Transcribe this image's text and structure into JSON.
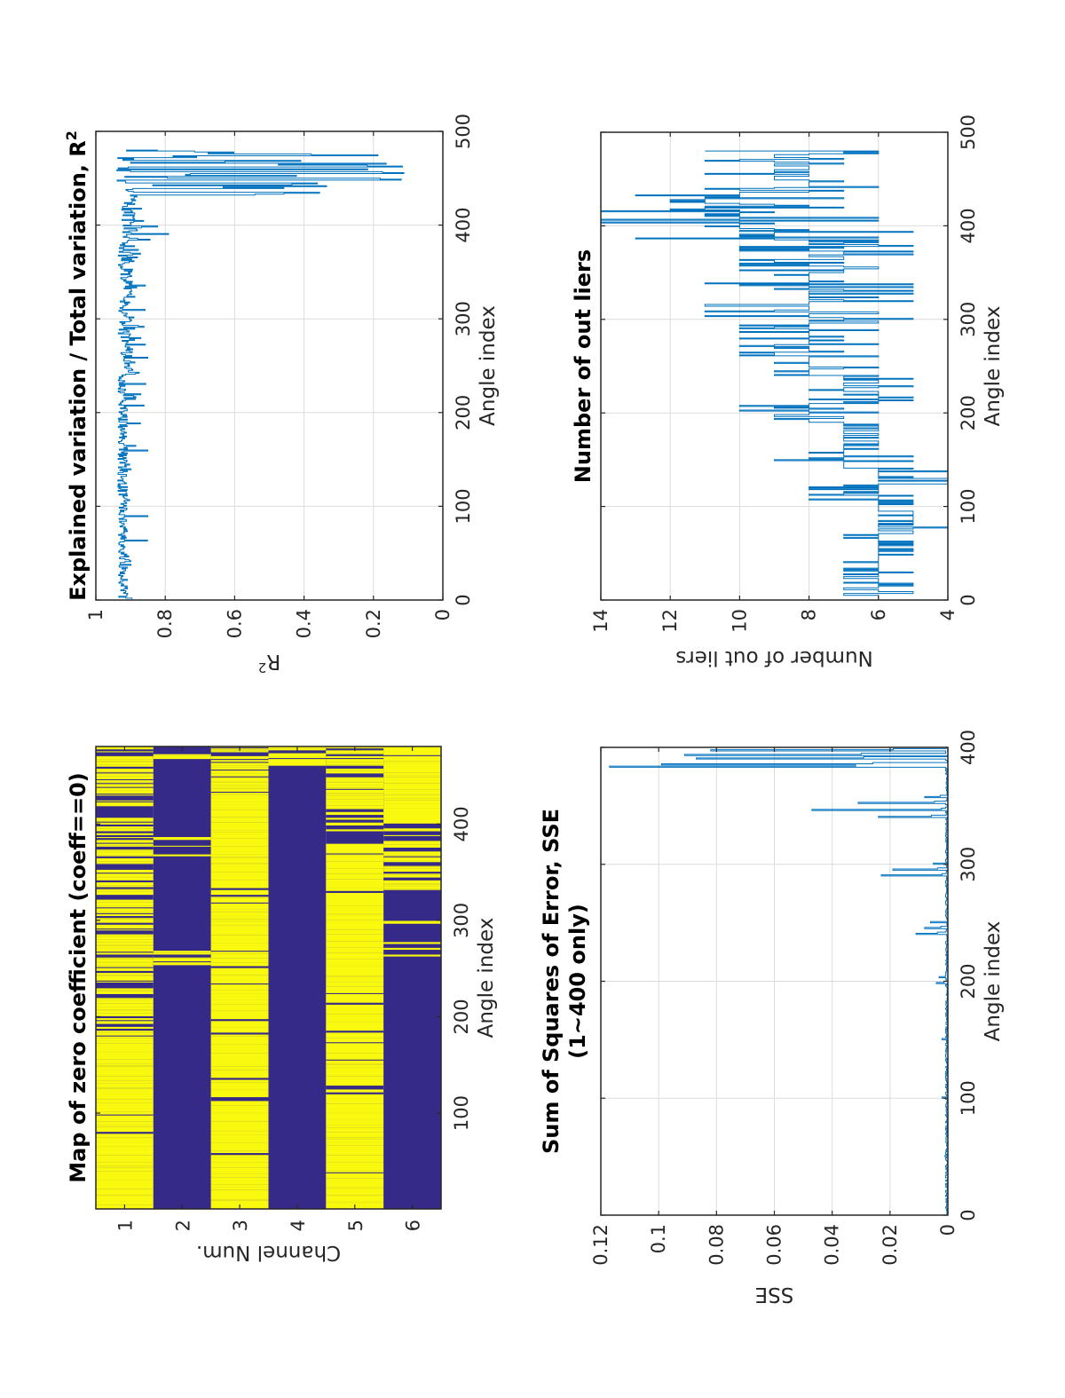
{
  "figure": {
    "orientation": "rotated -90 deg (landscape page shown in portrait)",
    "line_color": "#0072bd",
    "grid_color": "#dcdcdc",
    "axis_color": "#262626"
  },
  "chart_data": [
    {
      "id": "zero-map",
      "type": "heatmap",
      "title": "Map of zero coefficient (coeff==0)",
      "xlabel": "Angle index",
      "ylabel": "Channel Num.",
      "xlim": [
        0.5,
        480.5
      ],
      "xticks": [
        100,
        200,
        300,
        400
      ],
      "yticks": [
        1,
        2,
        3,
        4,
        5,
        6
      ],
      "colors": {
        "zero": "#f9f90f",
        "nonzero": "#352a87"
      },
      "grid": false,
      "rows": [
        {
          "channel": 1,
          "zero_fraction": 0.78,
          "note": "mostly zero throughout; dense alternation 170-470"
        },
        {
          "channel": 2,
          "zero_fraction": 0.04,
          "note": "mostly non-zero; sparse zero lines near 195, 255-265, 345-380, 465"
        },
        {
          "channel": 3,
          "zero_fraction": 0.86,
          "note": "mostly zero up to ~430; mixed 430-480"
        },
        {
          "channel": 4,
          "zero_fraction": 0.08,
          "note": "non-zero up to ~440; zero-dominated 440-480"
        },
        {
          "channel": 5,
          "zero_fraction": 0.8,
          "note": "mostly zero; non-zero gaps near 380-410"
        },
        {
          "channel": 6,
          "zero_fraction": 0.18,
          "note": "non-zero up to ~250; mixed 250-400; zero-dominated 400-480"
        }
      ]
    },
    {
      "id": "r-squared",
      "type": "line",
      "title": "Explained variation / Total variation, R²",
      "title_text": "Explained variation / Total variation, R",
      "title_sup": "2",
      "xlabel": "Angle index",
      "ylabel": "R",
      "ylabel_sup": "2",
      "xlim": [
        0,
        500
      ],
      "ylim": [
        0,
        1
      ],
      "xticks": [
        0,
        100,
        200,
        300,
        400,
        500
      ],
      "yticks": [
        0,
        0.2,
        0.4,
        0.6,
        0.8,
        1
      ],
      "ytick_labels": [
        "0",
        "0.2",
        "0.4",
        "0.6",
        "0.8",
        "1"
      ],
      "grid": true,
      "segments": [
        {
          "x_range": [
            1,
            60
          ],
          "baseline": 0.92,
          "min": 0.89,
          "max": 0.94
        },
        {
          "x_range": [
            60,
            240
          ],
          "baseline": 0.92,
          "min": 0.85,
          "max": 0.94
        },
        {
          "x_range": [
            240,
            260
          ],
          "baseline": 0.9,
          "min": 0.8,
          "max": 0.93
        },
        {
          "x_range": [
            260,
            380
          ],
          "baseline": 0.91,
          "min": 0.85,
          "max": 0.94
        },
        {
          "x_range": [
            380,
            400
          ],
          "baseline": 0.89,
          "min": 0.79,
          "max": 0.93
        },
        {
          "x_range": [
            400,
            430
          ],
          "baseline": 0.9,
          "min": 0.86,
          "max": 0.93
        },
        {
          "x_range": [
            430,
            480
          ],
          "baseline": 0.5,
          "min": 0.08,
          "max": 0.94
        }
      ]
    },
    {
      "id": "sse",
      "type": "line",
      "title_lines": [
        "Sum of Squares of Error, SSE",
        "(1~400 only)"
      ],
      "xlabel": "Angle index",
      "ylabel": "SSE",
      "xlim": [
        0,
        400
      ],
      "ylim": [
        0,
        0.12
      ],
      "xticks": [
        0,
        100,
        200,
        300,
        400
      ],
      "yticks": [
        0,
        0.02,
        0.04,
        0.06,
        0.08,
        0.1,
        0.12
      ],
      "ytick_labels": [
        "0",
        "0.02",
        "0.04",
        "0.06",
        "0.08",
        "0.1",
        "0.12"
      ],
      "grid": true,
      "peaks": [
        {
          "x": 50,
          "y": 0.001
        },
        {
          "x": 100,
          "y": 0.002
        },
        {
          "x": 150,
          "y": 0.002
        },
        {
          "x": 198,
          "y": 0.004
        },
        {
          "x": 203,
          "y": 0.003
        },
        {
          "x": 240,
          "y": 0.011
        },
        {
          "x": 245,
          "y": 0.008
        },
        {
          "x": 250,
          "y": 0.006
        },
        {
          "x": 290,
          "y": 0.023
        },
        {
          "x": 295,
          "y": 0.019
        },
        {
          "x": 300,
          "y": 0.005
        },
        {
          "x": 340,
          "y": 0.024
        },
        {
          "x": 346,
          "y": 0.047
        },
        {
          "x": 352,
          "y": 0.031
        },
        {
          "x": 357,
          "y": 0.008
        },
        {
          "x": 383,
          "y": 0.117
        },
        {
          "x": 385,
          "y": 0.099
        },
        {
          "x": 390,
          "y": 0.087
        },
        {
          "x": 393,
          "y": 0.091
        },
        {
          "x": 397,
          "y": 0.082
        }
      ]
    },
    {
      "id": "outliers",
      "type": "line",
      "title": "Number of out liers",
      "xlabel": "Angle index",
      "ylabel": "Number of out liers",
      "xlim": [
        0,
        500
      ],
      "ylim": [
        4,
        14
      ],
      "xticks": [
        0,
        100,
        200,
        300,
        400,
        500
      ],
      "yticks": [
        4,
        6,
        8,
        10,
        12,
        14
      ],
      "grid": true,
      "segments": [
        {
          "x_range": [
            1,
            70
          ],
          "min": 5,
          "max": 7
        },
        {
          "x_range": [
            70,
            95
          ],
          "min": 4,
          "max": 6
        },
        {
          "x_range": [
            95,
            140
          ],
          "min": 4,
          "max": 8
        },
        {
          "x_range": [
            140,
            160
          ],
          "min": 5,
          "max": 9
        },
        {
          "x_range": [
            160,
            190
          ],
          "min": 6,
          "max": 7
        },
        {
          "x_range": [
            190,
            210
          ],
          "min": 6,
          "max": 10
        },
        {
          "x_range": [
            210,
            240
          ],
          "min": 5,
          "max": 8
        },
        {
          "x_range": [
            240,
            300
          ],
          "min": 6,
          "max": 10
        },
        {
          "x_range": [
            300,
            345
          ],
          "min": 5,
          "max": 11
        },
        {
          "x_range": [
            345,
            385
          ],
          "min": 5,
          "max": 10
        },
        {
          "x_range": [
            385,
            410
          ],
          "min": 5,
          "max": 14
        },
        {
          "x_range": [
            410,
            440
          ],
          "min": 7,
          "max": 14
        },
        {
          "x_range": [
            440,
            480
          ],
          "min": 6,
          "max": 11
        }
      ]
    }
  ]
}
